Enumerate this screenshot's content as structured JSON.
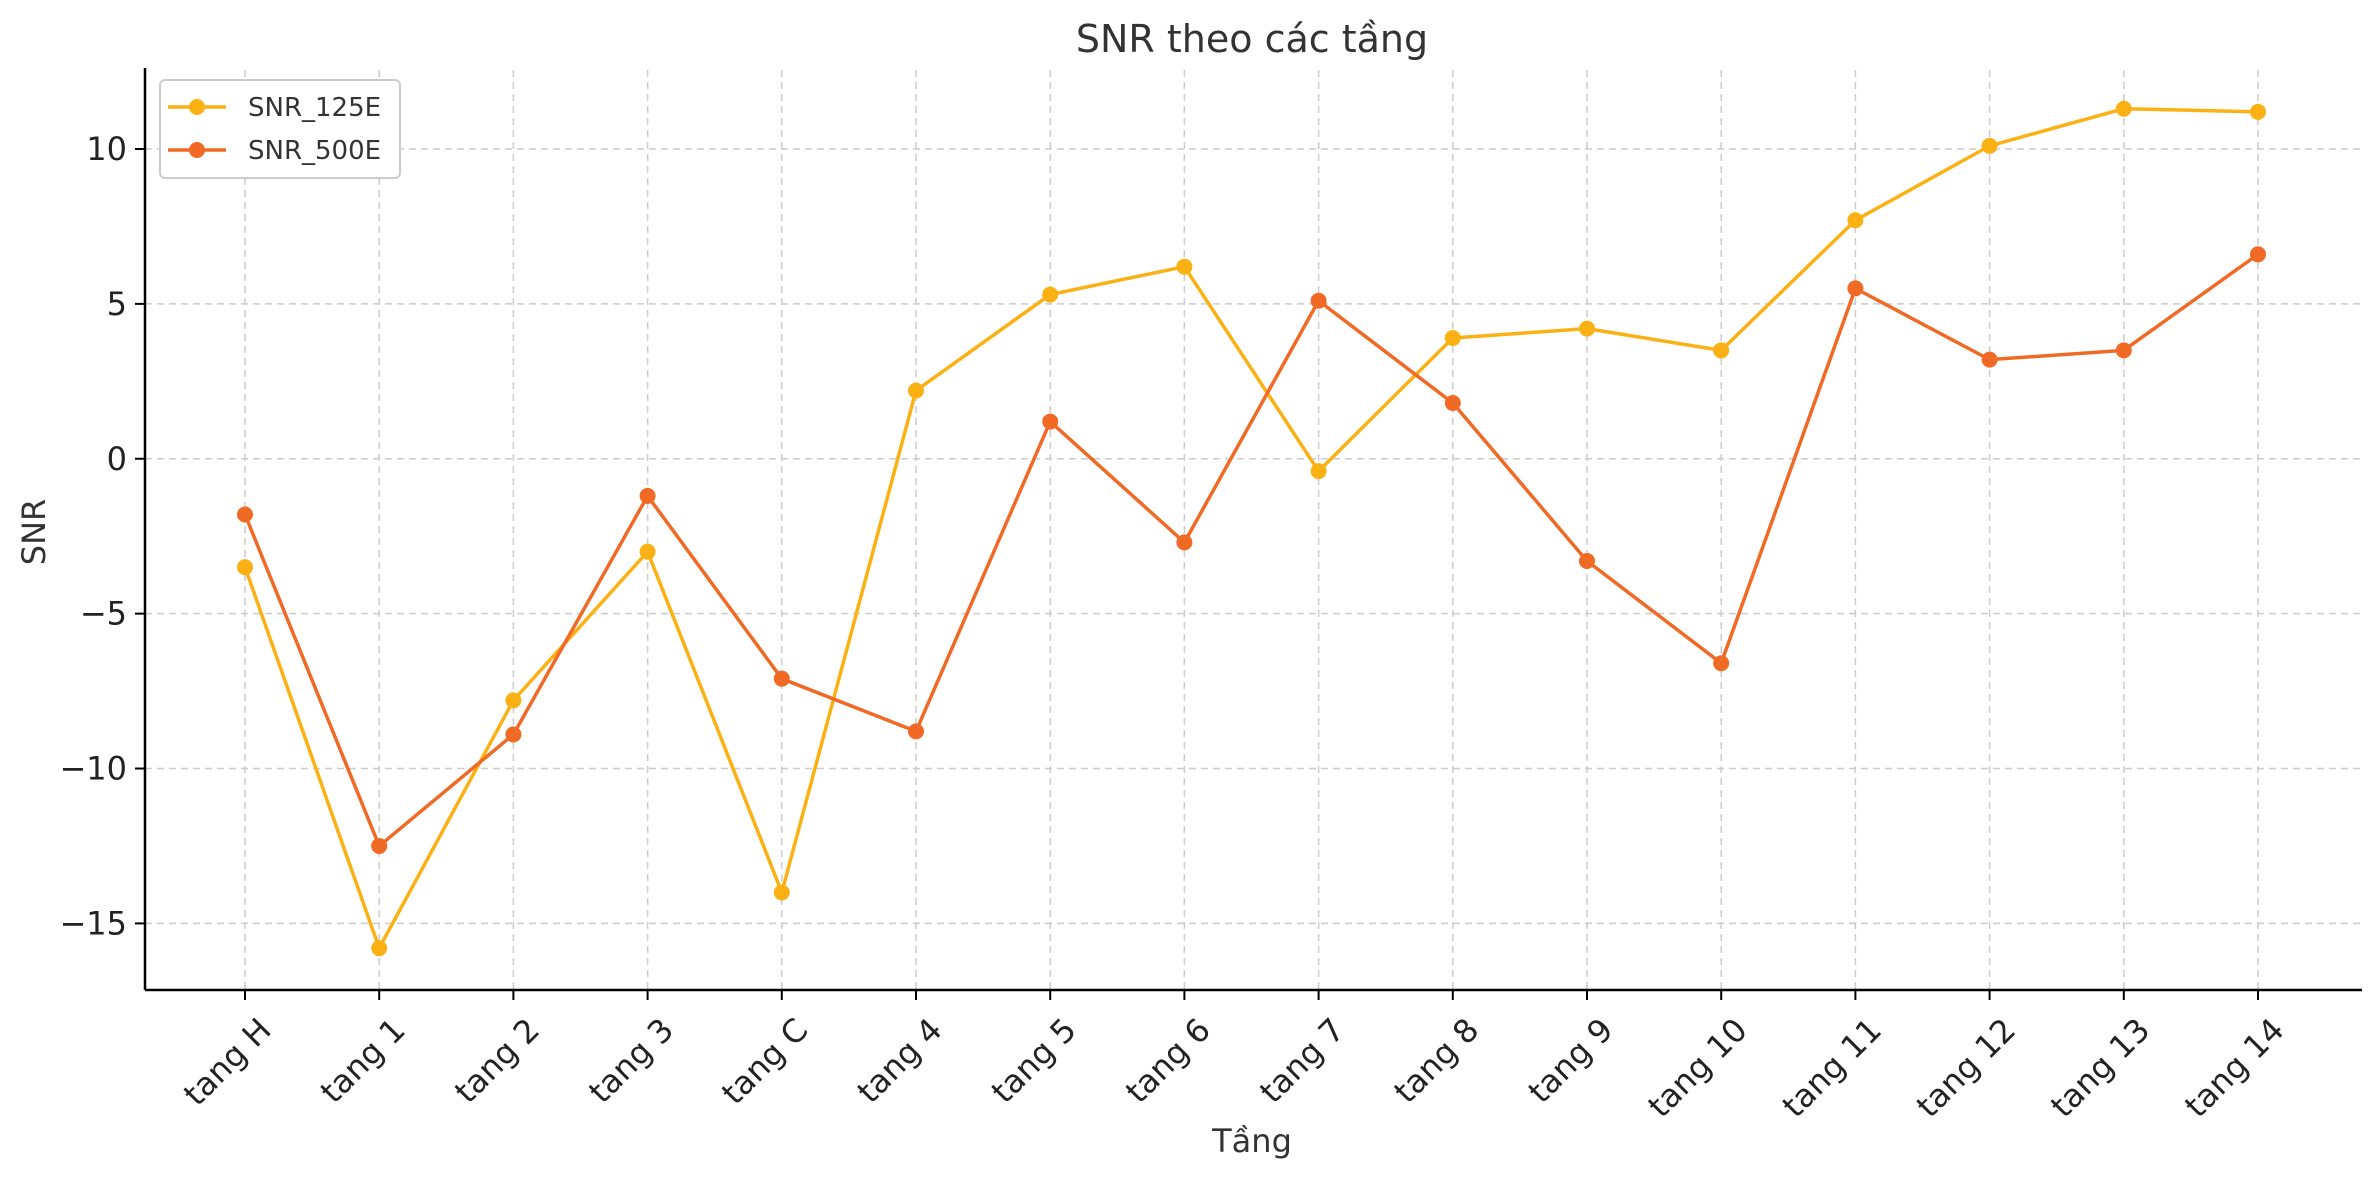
{
  "chart_data": {
    "type": "line",
    "title": "SNR theo các tầng",
    "xlabel": "Tầng",
    "ylabel": "SNR",
    "categories": [
      "tang H",
      "tang 1",
      "tang 2",
      "tang 3",
      "tang C",
      "tang 4",
      "tang 5",
      "tang 6",
      "tang 7",
      "tang 8",
      "tang 9",
      "tang 10",
      "tang 11",
      "tang 12",
      "tang 13",
      "tang 14"
    ],
    "series": [
      {
        "name": "SNR_125E",
        "color": "#FBB113",
        "values": [
          -3.5,
          -15.8,
          -7.8,
          -3.0,
          -14.0,
          2.2,
          5.3,
          6.2,
          -0.4,
          3.9,
          4.2,
          3.5,
          7.7,
          10.1,
          11.3,
          11.2
        ]
      },
      {
        "name": "SNR_500E",
        "color": "#F06A26",
        "values": [
          -1.8,
          -12.5,
          -8.9,
          -1.2,
          -7.1,
          -8.8,
          1.2,
          -2.7,
          5.1,
          1.8,
          -3.3,
          -6.6,
          5.5,
          3.2,
          3.5,
          6.6
        ]
      }
    ],
    "ylim": [
      -17.15,
      12.55
    ],
    "yticks": [
      -15,
      -10,
      -5,
      0,
      5,
      10
    ],
    "ytick_labels": [
      "−15",
      "−10",
      "−5",
      "0",
      "5",
      "10"
    ],
    "grid": true,
    "legend_position": "top-left"
  }
}
